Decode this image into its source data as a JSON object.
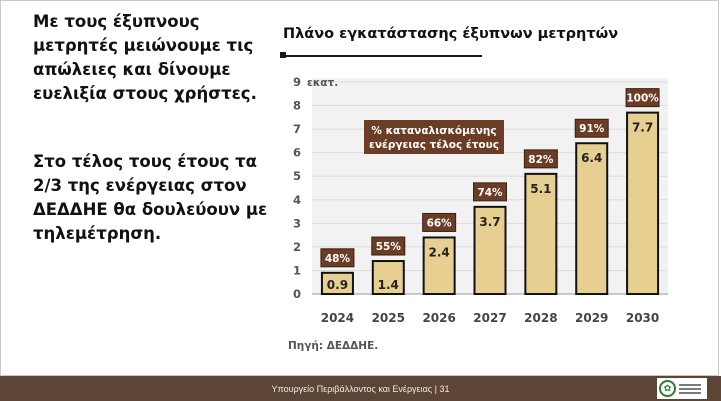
{
  "text": {
    "para1": "Με τους έξυπνους μετρητές μειώνουμε τις απώλειες και δίνουμε ευελιξία στους χρήστες.",
    "para2": "Στο τέλος τους έτους τα 2/3 της ενέργειας στον ΔΕΔΔΗΕ θα δουλεύουν με τηλεμέτρηση."
  },
  "chart_data": {
    "type": "bar",
    "title": "Πλάνο εγκατάστασης έξυπνων μετρητών",
    "unit_label": "εκατ.",
    "categories": [
      "2024",
      "2025",
      "2026",
      "2027",
      "2028",
      "2029",
      "2030"
    ],
    "values": [
      0.9,
      1.4,
      2.4,
      3.7,
      5.1,
      6.4,
      7.7
    ],
    "value_labels": [
      "0.9",
      "1.4",
      "2.4",
      "3.7",
      "5.1",
      "6.4",
      "7.7"
    ],
    "percent_labels": [
      "48%",
      "55%",
      "66%",
      "74%",
      "82%",
      "91%",
      "100%"
    ],
    "percent_legend": "% καταναλισκόμενης ενέργειας τέλος έτους",
    "ylim": [
      0,
      9
    ],
    "yticks": [
      "0",
      "1",
      "2",
      "3",
      "4",
      "5",
      "6",
      "7",
      "8",
      "9"
    ],
    "grid": true,
    "colors": {
      "bar_fill": "#e6cf90",
      "bar_stroke": "#111111",
      "label_box": "#6b3d24",
      "label_text": "#ffffff",
      "grid_panel": "#f2f2f2"
    }
  },
  "source": "Πηγή: ΔΕΔΔΗΕ.",
  "footer": {
    "text": "Υπουργείο Περιβάλλοντος και Ενέργειας | 31"
  }
}
